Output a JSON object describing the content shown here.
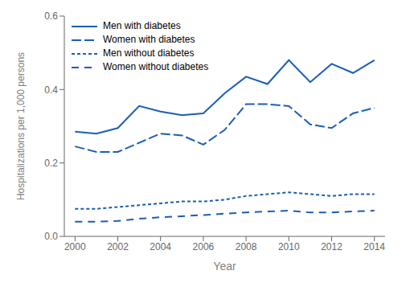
{
  "chart_data": {
    "type": "line",
    "xlabel": "Year",
    "ylabel": "Hospitalizations per 1,000 persons",
    "x": [
      2000,
      2001,
      2002,
      2003,
      2004,
      2005,
      2006,
      2007,
      2008,
      2009,
      2010,
      2011,
      2012,
      2013,
      2014
    ],
    "series": [
      {
        "name": "Men with diabetes",
        "color": "#1a5eb8",
        "line_style": "solid",
        "values": [
          0.285,
          0.28,
          0.295,
          0.355,
          0.34,
          0.33,
          0.335,
          0.39,
          0.435,
          0.415,
          0.48,
          0.42,
          0.47,
          0.445,
          0.48
        ]
      },
      {
        "name": "Women with diabetes",
        "color": "#1a5eb8",
        "line_style": "dashed",
        "values": [
          0.245,
          0.23,
          0.23,
          0.255,
          0.28,
          0.275,
          0.25,
          0.29,
          0.36,
          0.36,
          0.355,
          0.305,
          0.295,
          0.335,
          0.35
        ]
      },
      {
        "name": "Men without diabetes",
        "color": "#1a5eb8",
        "line_style": "dotted",
        "values": [
          0.075,
          0.075,
          0.08,
          0.085,
          0.09,
          0.095,
          0.095,
          0.1,
          0.11,
          0.115,
          0.12,
          0.115,
          0.11,
          0.115,
          0.115
        ]
      },
      {
        "name": "Women without diabetes",
        "color": "#1a5eb8",
        "line_style": "loosely_dashed",
        "values": [
          0.04,
          0.04,
          0.042,
          0.048,
          0.052,
          0.055,
          0.058,
          0.062,
          0.065,
          0.068,
          0.07,
          0.065,
          0.065,
          0.068,
          0.07
        ]
      }
    ],
    "xlim": [
      1999.5,
      2014.5
    ],
    "ylim": [
      0,
      0.6
    ],
    "xticks": [
      2000,
      2002,
      2004,
      2006,
      2008,
      2010,
      2012,
      2014
    ],
    "yticks": [
      {
        "value": 0,
        "label": "0.0"
      },
      0.2,
      0.4,
      0.6
    ],
    "grid": false,
    "legend": "upper left"
  }
}
